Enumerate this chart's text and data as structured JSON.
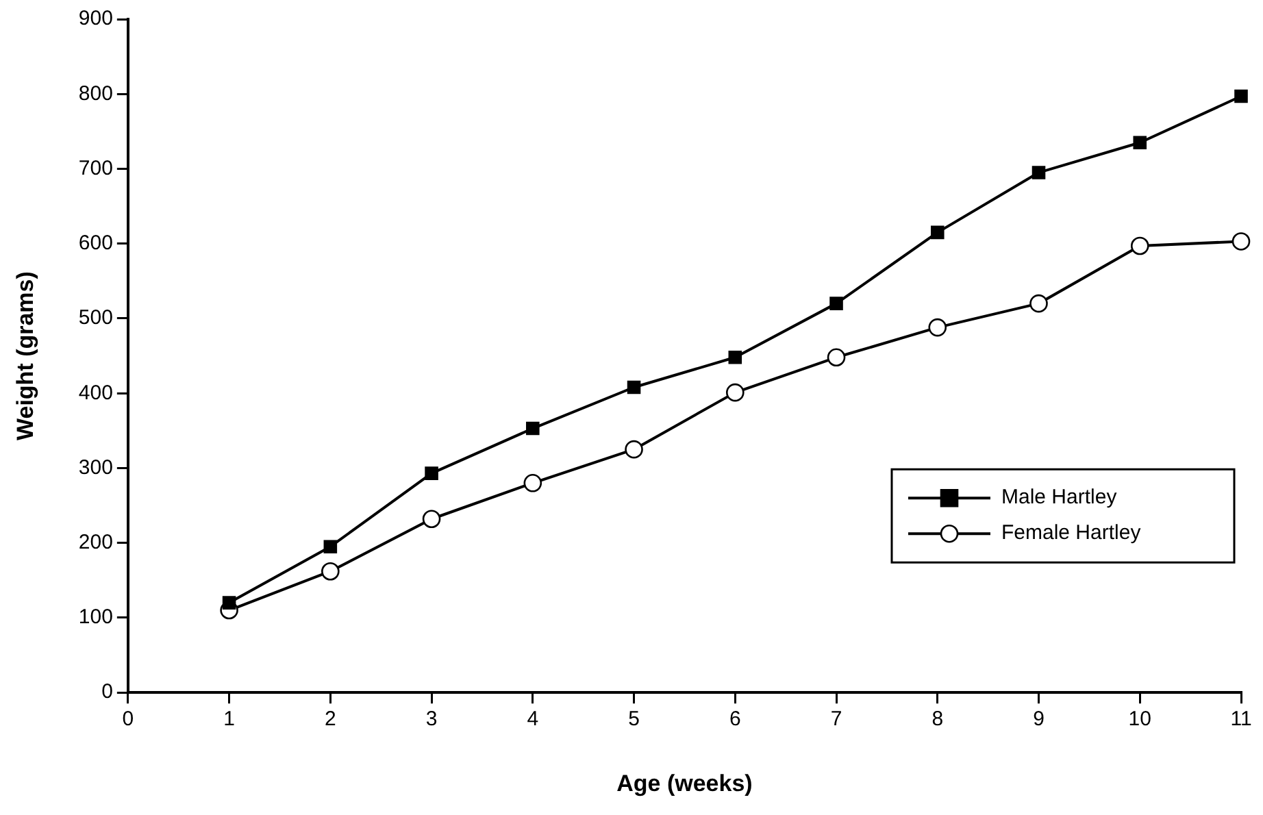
{
  "chart_data": {
    "type": "line",
    "xlabel": "Age (weeks)",
    "ylabel": "Weight (grams)",
    "x": [
      1,
      2,
      3,
      4,
      5,
      6,
      7,
      8,
      9,
      10,
      11
    ],
    "xlim": [
      0,
      11
    ],
    "xticks": [
      0,
      1,
      2,
      3,
      4,
      5,
      6,
      7,
      8,
      9,
      10,
      11
    ],
    "ylim": [
      0,
      900
    ],
    "yticks": [
      0,
      100,
      200,
      300,
      400,
      500,
      600,
      700,
      800,
      900
    ],
    "grid": false,
    "legend": "bottom right",
    "line_style": "solid",
    "series": [
      {
        "name": "Male Hartley",
        "color": "#000000",
        "marker": "square",
        "values": [
          120,
          195,
          293,
          353,
          408,
          448,
          520,
          615,
          695,
          735,
          797
        ]
      },
      {
        "name": "Female Hartley",
        "color": "#000000",
        "marker": "circle",
        "values": [
          110,
          162,
          232,
          280,
          325,
          401,
          448,
          488,
          520,
          597,
          603
        ]
      }
    ]
  }
}
